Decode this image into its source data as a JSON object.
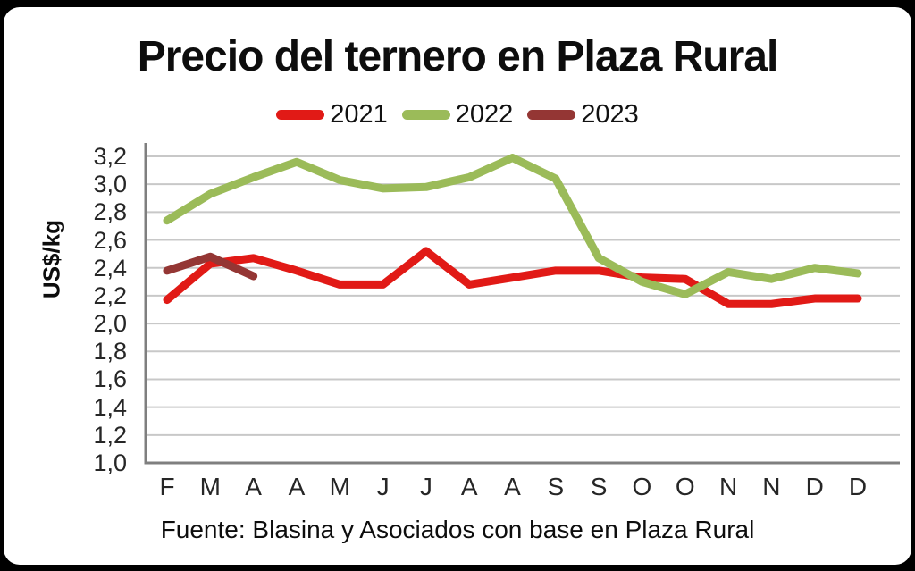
{
  "title": "Precio del ternero en Plaza Rural",
  "source": "Fuente: Blasina y Asociados con base en Plaza Rural",
  "colors": {
    "page_bg": "#000000",
    "card_bg": "#ffffff",
    "grid": "#c8c8c8",
    "axis": "#7f7f7f",
    "text": "#1a1a1a",
    "series_2021": "#e11a16",
    "series_2022": "#9bbb59",
    "series_2023": "#943634"
  },
  "chart_data": {
    "type": "line",
    "title": "Precio del ternero en Plaza Rural",
    "xlabel": "",
    "ylabel": "US$/kg",
    "ylim": [
      1.0,
      3.2
    ],
    "y_tick_step": 0.2,
    "grid": "horizontal",
    "legend_position": "top-center",
    "x_tick_labels": [
      "F",
      "M",
      "A",
      "A",
      "M",
      "J",
      "J",
      "A",
      "A",
      "S",
      "S",
      "O",
      "O",
      "N",
      "N",
      "D",
      "D"
    ],
    "y_ticks": [
      {
        "value": 3.2,
        "label": "3,2"
      },
      {
        "value": 3.0,
        "label": "3,0"
      },
      {
        "value": 2.8,
        "label": "2,8"
      },
      {
        "value": 2.6,
        "label": "2,6"
      },
      {
        "value": 2.4,
        "label": "2,4"
      },
      {
        "value": 2.2,
        "label": "2,2"
      },
      {
        "value": 2.0,
        "label": "2,0"
      },
      {
        "value": 1.8,
        "label": "1,8"
      },
      {
        "value": 1.6,
        "label": "1,6"
      },
      {
        "value": 1.4,
        "label": "1,4"
      },
      {
        "value": 1.2,
        "label": "1,2"
      },
      {
        "value": 1.0,
        "label": "1,0"
      }
    ],
    "series": [
      {
        "name": "2021",
        "color": "#e11a16",
        "values": [
          2.17,
          2.43,
          2.47,
          2.38,
          2.28,
          2.28,
          2.52,
          2.28,
          2.33,
          2.38,
          2.38,
          2.33,
          2.32,
          2.14,
          2.14,
          2.18,
          2.18
        ]
      },
      {
        "name": "2022",
        "color": "#9bbb59",
        "values": [
          2.74,
          2.93,
          3.05,
          3.16,
          3.03,
          2.97,
          2.98,
          3.05,
          3.19,
          3.04,
          2.47,
          2.3,
          2.21,
          2.37,
          2.32,
          2.4,
          2.36
        ]
      },
      {
        "name": "2023",
        "color": "#943634",
        "values": [
          2.38,
          2.48,
          2.34,
          null,
          null,
          null,
          null,
          null,
          null,
          null,
          null,
          null,
          null,
          null,
          null,
          null,
          null
        ]
      }
    ]
  }
}
